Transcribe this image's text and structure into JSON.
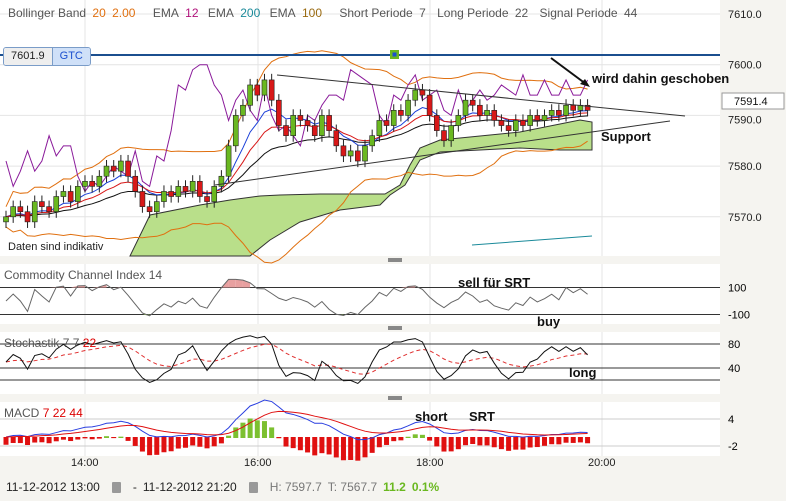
{
  "legend": {
    "bb_label": "Bollinger Band",
    "bb_p1": "20",
    "bb_p2": "2.00",
    "ema1_label": "EMA",
    "ema1_val": "12",
    "ema2_label": "EMA",
    "ema2_val": "200",
    "ema3_label": "EMA",
    "ema3_val": "100",
    "short_label": "Short Periode",
    "short_val": "7",
    "long_label": "Long Periode",
    "long_val": "22",
    "signal_label": "Signal Periode",
    "signal_val": "44"
  },
  "order": {
    "price": "7601.9",
    "type": "GTC"
  },
  "last_price": "7591.4",
  "disclaimer": "Daten sind indikativ",
  "annotations": {
    "pushed": "wird dahin geschoben",
    "support": "Support",
    "sell": "sell für SRT",
    "buy": "buy",
    "long": "long",
    "short": "short",
    "srt": "SRT"
  },
  "panels": {
    "cci": {
      "label": "Commodity Channel Index",
      "period": "14"
    },
    "stoch": {
      "label": "Stochastik",
      "p1": "7",
      "p2": "7",
      "p3": "22"
    },
    "macd": {
      "label": "MACD",
      "p1": "7",
      "p2": "22",
      "p3": "44"
    }
  },
  "footer": {
    "from": "11-12-2012 13:00",
    "to": "11-12-2012 21:20",
    "dash": "-",
    "high": "H: 7597.7",
    "low": "T: 7567.7",
    "change": "11.2",
    "change_pct": "0.1%"
  },
  "colors": {
    "up": "#6ab820",
    "down": "#d81818",
    "cloud": "#b9df8a",
    "order_line": "#1b4f8f"
  },
  "chart_data": {
    "type": "candlestick",
    "x_ticks": [
      "14:00",
      "16:00",
      "18:00",
      "20:00"
    ],
    "y_ticks": [
      "7610.0",
      "7600.0",
      "7590.0",
      "7580.0",
      "7570.0"
    ],
    "ylim": [
      7563,
      7611
    ],
    "closes": [
      7570,
      7572,
      7571,
      7569,
      7573,
      7572,
      7571,
      7574,
      7575,
      7573,
      7576,
      7577,
      7576,
      7578,
      7580,
      7579,
      7581,
      7578,
      7575,
      7572,
      7571,
      7573,
      7575,
      7574,
      7576,
      7575,
      7577,
      7574,
      7573,
      7576,
      7578,
      7584,
      7590,
      7592,
      7596,
      7594,
      7597,
      7593,
      7588,
      7586,
      7590,
      7589,
      7588,
      7586,
      7590,
      7587,
      7584,
      7582,
      7583,
      7581,
      7584,
      7586,
      7589,
      7588,
      7591,
      7590,
      7593,
      7595,
      7594,
      7590,
      7587,
      7585,
      7588,
      7590,
      7593,
      7592,
      7590,
      7591,
      7589,
      7588,
      7587,
      7589,
      7588,
      7590,
      7589,
      7590,
      7591,
      7590,
      7592,
      7591,
      7592,
      7591
    ],
    "cci_ticks": [
      "100",
      "-100"
    ],
    "stoch_ticks": [
      "80",
      "40"
    ],
    "macd_ticks": [
      "4",
      "-2"
    ]
  }
}
